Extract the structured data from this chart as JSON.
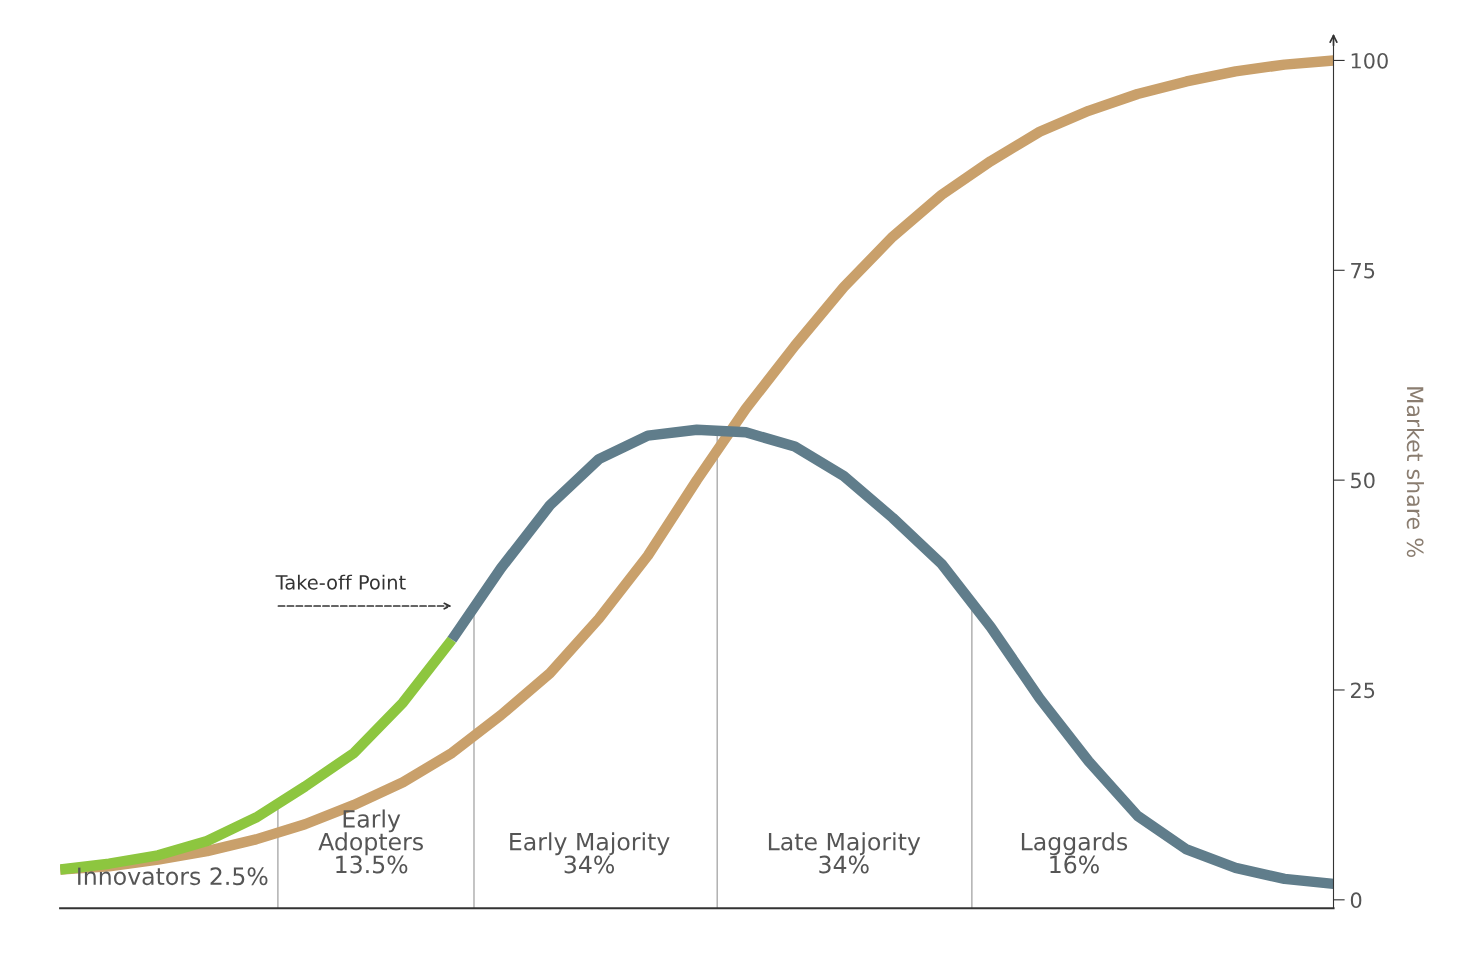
{
  "chart_data": {
    "type": "line",
    "categories": [
      null,
      null,
      null,
      null,
      null,
      null,
      null,
      null,
      null,
      null,
      null,
      null,
      null,
      null,
      null,
      null,
      null,
      null,
      null,
      null,
      null,
      null,
      null,
      null,
      null,
      null,
      null
    ],
    "series": [
      {
        "color": "#c9a06b",
        "values": [
          3.6,
          4.0,
          4.8,
          5.8,
          7.2,
          9.0,
          11.3,
          14.0,
          17.5,
          22.0,
          27.0,
          33.5,
          41.0,
          50.0,
          58.5,
          66.0,
          73.0,
          79.0,
          84.0,
          88.0,
          91.5,
          94.0,
          96.0,
          97.5,
          98.7,
          99.5,
          100
        ]
      },
      {
        "color": "#8dc63f",
        "values": [
          3.6,
          4.3,
          5.3,
          7.0,
          9.8,
          13.5,
          17.5,
          23.5,
          31.0,
          null,
          null,
          null,
          null,
          null,
          null,
          null,
          null,
          null,
          null,
          null,
          null,
          null,
          null,
          null,
          null,
          null,
          null
        ]
      },
      {
        "color": "#607d8b",
        "values": [
          null,
          null,
          null,
          null,
          null,
          null,
          null,
          null,
          31.0,
          39.5,
          47.0,
          52.5,
          55.3,
          56.0,
          55.7,
          54.0,
          50.5,
          45.5,
          40.0,
          32.5,
          24.0,
          16.5,
          10.0,
          6.0,
          3.8,
          2.5,
          1.9
        ]
      }
    ],
    "ylabel": "Market share %",
    "ylim": [
      -1,
      103
    ],
    "yticks": [
      0,
      25,
      50,
      75,
      100
    ],
    "tick_labels": "y",
    "grid": false,
    "legend": false,
    "marker": "none",
    "line_style": "solid",
    "annotations": [
      "Innovators 2.5%",
      "Early\nAdopters\n13.5%",
      "Early Majority\n34%",
      "Late Majority\n34%",
      "Laggards\n16%",
      "Take-off Point"
    ]
  }
}
